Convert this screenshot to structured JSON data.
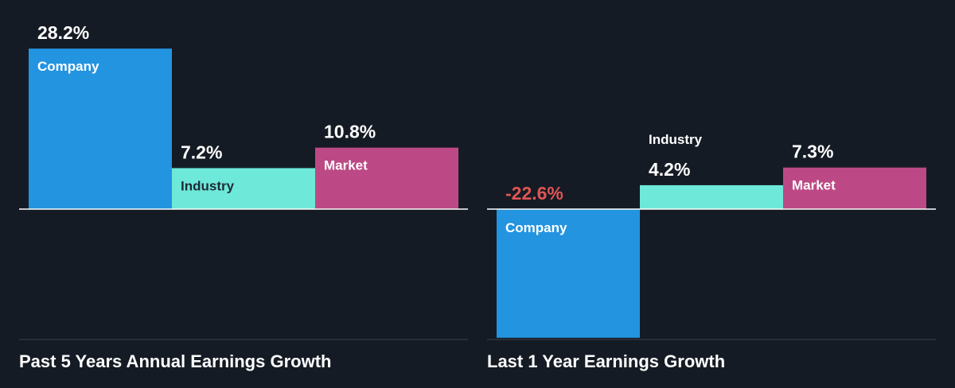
{
  "colors": {
    "background": "#151b24",
    "Company": "#2394e0",
    "Industry": "#6ee9d9",
    "Market": "#bc4985",
    "negative_label": "#e05555",
    "baseline": "#ffffff",
    "divider": "#3a414c"
  },
  "chart_data": [
    {
      "type": "bar",
      "title": "Past 5 Years Annual Earnings Growth",
      "categories": [
        "Company",
        "Industry",
        "Market"
      ],
      "values": [
        28.2,
        7.2,
        10.8
      ],
      "value_labels": [
        "28.2%",
        "7.2%",
        "10.8%"
      ],
      "unit": "%"
    },
    {
      "type": "bar",
      "title": "Last 1 Year Earnings Growth",
      "categories": [
        "Company",
        "Industry",
        "Market"
      ],
      "values": [
        -22.6,
        4.2,
        7.3
      ],
      "value_labels": [
        "-22.6%",
        "4.2%",
        "7.3%"
      ],
      "unit": "%"
    }
  ]
}
